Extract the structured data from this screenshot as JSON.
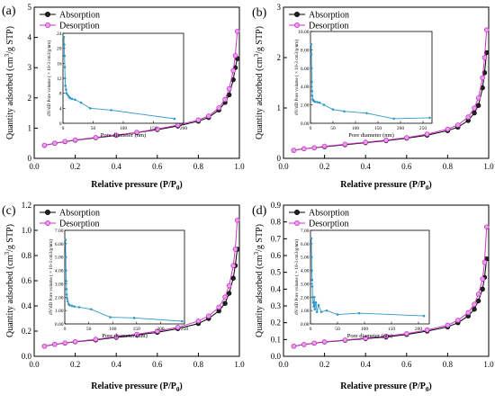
{
  "figure": {
    "panel_labels": [
      "(a)",
      "(b)",
      "(c)",
      "(d)"
    ]
  },
  "chart_data": [
    {
      "type": "line",
      "panel": "(a)",
      "xlabel": "Relative pressure (P/P",
      "xlabel_sub": "0",
      "xlabel_end": ")",
      "ylabel": "Quantity adsorbed (cm",
      "ylabel_sup": "3",
      "ylabel_end": "/g STP)",
      "xlim": [
        0,
        1
      ],
      "ylim": [
        0,
        5
      ],
      "xticks": [
        "0.0",
        "0.2",
        "0.4",
        "0.6",
        "0.8",
        "1.0"
      ],
      "yticks": [
        "0",
        "1",
        "2",
        "3",
        "4",
        "5"
      ],
      "legend": [
        "Absorption",
        "Desorption"
      ],
      "legend_position": "top-left",
      "series": [
        {
          "name": "Absorption",
          "color": "#000000",
          "x": [
            0.05,
            0.1,
            0.15,
            0.2,
            0.3,
            0.4,
            0.5,
            0.6,
            0.7,
            0.8,
            0.85,
            0.9,
            0.93,
            0.95,
            0.97,
            0.98,
            0.99
          ],
          "y": [
            0.43,
            0.5,
            0.55,
            0.6,
            0.68,
            0.76,
            0.85,
            0.95,
            1.07,
            1.23,
            1.35,
            1.6,
            1.85,
            2.1,
            2.6,
            3.0,
            3.3
          ]
        },
        {
          "name": "Desorption",
          "color": "#cc33cc",
          "x": [
            0.05,
            0.1,
            0.15,
            0.2,
            0.3,
            0.4,
            0.5,
            0.6,
            0.7,
            0.8,
            0.85,
            0.9,
            0.93,
            0.95,
            0.97,
            0.98,
            0.99
          ],
          "y": [
            0.43,
            0.5,
            0.56,
            0.61,
            0.69,
            0.77,
            0.86,
            0.97,
            1.1,
            1.27,
            1.4,
            1.67,
            1.95,
            2.3,
            2.9,
            3.4,
            4.2
          ]
        }
      ],
      "inset": {
        "type": "line",
        "xlabel": "Pore diameter (nm)",
        "ylabel": "dV/dD Pore volume ( × 10-3 cm3/g/nm)",
        "xlim": [
          0,
          200
        ],
        "ylim": [
          0,
          24
        ],
        "xticks": [
          "0",
          "50",
          "100",
          "150",
          "200"
        ],
        "yticks": [
          "0",
          "4",
          "8",
          "12",
          "16",
          "20",
          "24"
        ],
        "color": "#3399cc",
        "x": [
          1.5,
          2,
          2.5,
          3,
          3.5,
          4,
          5,
          6,
          8,
          10,
          12,
          15,
          20,
          30,
          45,
          80,
          185
        ],
        "y": [
          23,
          21,
          18,
          15,
          12,
          10,
          9,
          8,
          7.5,
          7,
          6.7,
          6.5,
          6.3,
          5.5,
          4,
          3.5,
          1.2
        ]
      }
    },
    {
      "type": "line",
      "panel": "(b)",
      "xlabel": "Relative pressure (P/P",
      "xlabel_sub": "0",
      "xlabel_end": ")",
      "ylabel": "Quantity adsorbed (cm",
      "ylabel_sup": "3",
      "ylabel_end": "/g STP)",
      "xlim": [
        0,
        1
      ],
      "ylim": [
        0,
        3
      ],
      "xticks": [
        "0.0",
        "0.2",
        "0.4",
        "0.6",
        "0.8",
        "1.0"
      ],
      "yticks": [
        "0",
        "1",
        "2",
        "3"
      ],
      "legend": [
        "Absorption",
        "Desorption"
      ],
      "legend_position": "top-left",
      "series": [
        {
          "name": "Absorption",
          "color": "#000000",
          "x": [
            0.05,
            0.1,
            0.15,
            0.2,
            0.3,
            0.4,
            0.5,
            0.6,
            0.7,
            0.8,
            0.85,
            0.9,
            0.93,
            0.95,
            0.97,
            0.98,
            0.99
          ],
          "y": [
            0.16,
            0.19,
            0.21,
            0.23,
            0.27,
            0.31,
            0.35,
            0.4,
            0.46,
            0.55,
            0.62,
            0.75,
            0.9,
            1.05,
            1.4,
            1.7,
            2.1
          ]
        },
        {
          "name": "Desorption",
          "color": "#cc33cc",
          "x": [
            0.05,
            0.1,
            0.15,
            0.2,
            0.3,
            0.4,
            0.5,
            0.6,
            0.7,
            0.8,
            0.85,
            0.9,
            0.93,
            0.95,
            0.97,
            0.98,
            0.99
          ],
          "y": [
            0.16,
            0.19,
            0.21,
            0.24,
            0.28,
            0.32,
            0.36,
            0.41,
            0.48,
            0.58,
            0.66,
            0.82,
            1.0,
            1.2,
            1.6,
            2.0,
            2.55
          ]
        }
      ],
      "inset": {
        "type": "line",
        "xlabel": "Pore diameter (nm)",
        "ylabel": "dV/dD Pore volume ( × 10-3 cm3/g/nm)",
        "xlim": [
          0,
          270
        ],
        "ylim": [
          0,
          10
        ],
        "xticks": [
          "0",
          "50",
          "100",
          "150",
          "200",
          "250"
        ],
        "yticks": [
          "0.00",
          "2.00",
          "4.00",
          "6.00",
          "8.00",
          "10.00"
        ],
        "color": "#3399cc",
        "x": [
          1.5,
          2,
          2.5,
          3,
          3.5,
          4,
          5,
          6,
          8,
          10,
          15,
          20,
          30,
          50,
          75,
          125,
          185,
          265
        ],
        "y": [
          8.6,
          7.5,
          6.0,
          4.5,
          3.5,
          3.0,
          2.6,
          2.5,
          2.4,
          2.35,
          2.3,
          2.25,
          2.0,
          1.5,
          1.3,
          1.1,
          0.5,
          0.6
        ]
      }
    },
    {
      "type": "line",
      "panel": "(c)",
      "xlabel": "Relative pressure (P/P",
      "xlabel_sub": "0",
      "xlabel_end": ")",
      "ylabel": "Quantity adsorbed (cm",
      "ylabel_sup": "3",
      "ylabel_end": "/g STP)",
      "xlim": [
        0,
        1
      ],
      "ylim": [
        0,
        1.2
      ],
      "xticks": [
        "0.0",
        "0.2",
        "0.4",
        "0.6",
        "0.8",
        "1.0"
      ],
      "yticks": [
        "0.0",
        "0.2",
        "0.4",
        "0.6",
        "0.8",
        "1.0",
        "1.2"
      ],
      "legend": [
        "Absorption",
        "Desorption"
      ],
      "legend_position": "top-left",
      "series": [
        {
          "name": "Absorption",
          "color": "#000000",
          "x": [
            0.05,
            0.1,
            0.15,
            0.2,
            0.3,
            0.4,
            0.5,
            0.6,
            0.7,
            0.8,
            0.85,
            0.9,
            0.93,
            0.95,
            0.97,
            0.98,
            0.99
          ],
          "y": [
            0.08,
            0.095,
            0.105,
            0.115,
            0.13,
            0.15,
            0.17,
            0.19,
            0.22,
            0.26,
            0.3,
            0.36,
            0.42,
            0.5,
            0.62,
            0.72,
            0.85
          ]
        },
        {
          "name": "Desorption",
          "color": "#cc33cc",
          "x": [
            0.05,
            0.1,
            0.15,
            0.2,
            0.3,
            0.4,
            0.5,
            0.6,
            0.7,
            0.8,
            0.85,
            0.9,
            0.93,
            0.95,
            0.97,
            0.98,
            0.99
          ],
          "y": [
            0.08,
            0.095,
            0.106,
            0.117,
            0.135,
            0.155,
            0.175,
            0.2,
            0.23,
            0.28,
            0.32,
            0.39,
            0.47,
            0.56,
            0.72,
            0.85,
            1.08
          ]
        }
      ],
      "inset": {
        "type": "line",
        "xlabel": "Pore diameter (nm)",
        "ylabel": "dV/dD Pore volume ( × 10-3 cm3/g/nm)",
        "xlim": [
          0,
          250
        ],
        "ylim": [
          0,
          7
        ],
        "xticks": [
          "0",
          "50",
          "100",
          "150",
          "200",
          "250"
        ],
        "yticks": [
          "0.00",
          "1.00",
          "2.00",
          "3.00",
          "4.00",
          "5.00",
          "6.00",
          "7.00"
        ],
        "color": "#3399cc",
        "x": [
          1.5,
          2,
          2.5,
          3,
          3.5,
          4,
          5,
          6,
          8,
          10,
          15,
          20,
          30,
          55,
          95,
          145,
          245
        ],
        "y": [
          6.3,
          5.0,
          4.0,
          3.2,
          2.6,
          2.2,
          1.9,
          1.7,
          1.5,
          1.4,
          1.35,
          1.3,
          1.25,
          1.1,
          0.5,
          0.45,
          0.2
        ]
      }
    },
    {
      "type": "line",
      "panel": "(d)",
      "xlabel": "Relative pressure (P/P",
      "xlabel_sub": "0",
      "xlabel_end": ")",
      "ylabel": "Quantity adsorbed (cm",
      "ylabel_sup": "3",
      "ylabel_end": "/g STP)",
      "xlim": [
        0,
        1
      ],
      "ylim": [
        0,
        0.9
      ],
      "xticks": [
        "0.0",
        "0.2",
        "0.4",
        "0.6",
        "0.8",
        "1.0"
      ],
      "yticks": [
        "0.0",
        "0.1",
        "0.2",
        "0.3",
        "0.4",
        "0.5",
        "0.6",
        "0.7",
        "0.8",
        "0.9"
      ],
      "legend": [
        "Absorption",
        "Desorption"
      ],
      "legend_position": "top-left",
      "series": [
        {
          "name": "Absorption",
          "color": "#000000",
          "x": [
            0.05,
            0.1,
            0.15,
            0.2,
            0.3,
            0.4,
            0.5,
            0.6,
            0.7,
            0.8,
            0.85,
            0.9,
            0.93,
            0.95,
            0.97,
            0.98,
            0.99
          ],
          "y": [
            0.06,
            0.07,
            0.078,
            0.085,
            0.095,
            0.105,
            0.115,
            0.13,
            0.15,
            0.175,
            0.2,
            0.24,
            0.28,
            0.33,
            0.4,
            0.47,
            0.58
          ]
        },
        {
          "name": "Desorption",
          "color": "#cc33cc",
          "x": [
            0.05,
            0.1,
            0.15,
            0.2,
            0.3,
            0.4,
            0.5,
            0.6,
            0.7,
            0.8,
            0.85,
            0.9,
            0.93,
            0.95,
            0.97,
            0.98,
            0.99
          ],
          "y": [
            0.06,
            0.07,
            0.079,
            0.086,
            0.097,
            0.108,
            0.12,
            0.135,
            0.157,
            0.185,
            0.215,
            0.26,
            0.31,
            0.37,
            0.46,
            0.56,
            0.77
          ]
        }
      ],
      "inset": {
        "type": "line",
        "xlabel": "Pore diameter (nm)",
        "ylabel": "dV/dD Pore volume ( × 10-3 cm3/g/nm)",
        "xlim": [
          0,
          220
        ],
        "ylim": [
          0,
          7
        ],
        "xticks": [
          "0",
          "50",
          "100",
          "150",
          "200"
        ],
        "yticks": [
          "0.00",
          "1.00",
          "2.00",
          "3.00",
          "4.00",
          "5.00",
          "6.00",
          "7.00"
        ],
        "color": "#3399cc",
        "x": [
          1.5,
          2,
          2.5,
          3,
          3.5,
          4,
          5,
          6,
          7,
          8,
          10,
          12,
          15,
          20,
          30,
          50,
          90,
          210
        ],
        "y": [
          6.4,
          5.0,
          4.0,
          3.3,
          2.8,
          2.0,
          1.6,
          1.3,
          2.0,
          1.1,
          1.6,
          0.9,
          1.4,
          0.9,
          1.0,
          0.7,
          0.8,
          0.6
        ]
      }
    }
  ]
}
